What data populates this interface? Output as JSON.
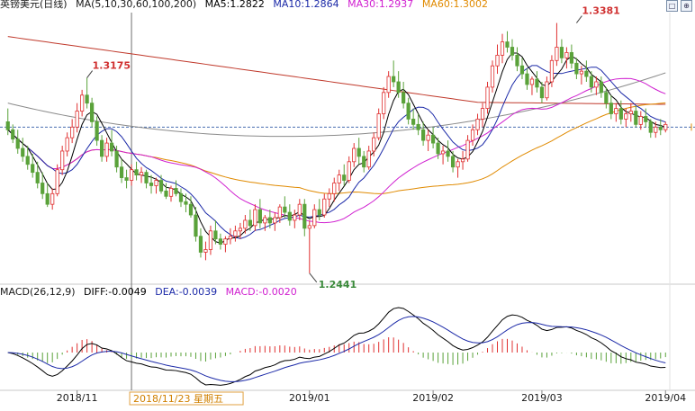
{
  "header": {
    "instrument": "英镑美元(日线)",
    "ma_label": "MA(5,10,30,60,100,200)",
    "ma_values": [
      {
        "label": "MA5:1.2822",
        "color": "#000000"
      },
      {
        "label": "MA10:1.2864",
        "color": "#1c2aa8"
      },
      {
        "label": "MA30:1.2937",
        "color": "#d020d0"
      },
      {
        "label": "MA60:1.3002",
        "color": "#e08a00"
      }
    ],
    "window_buttons": [
      "□",
      "⊕"
    ]
  },
  "macd_header": {
    "params": "MACD(26,12,9)",
    "diff": "DIFF:-0.0049",
    "dea": "DEA:-0.0039",
    "macd": "MACD:-0.0020",
    "diff_color": "#000000",
    "dea_color": "#1c2aa8",
    "macd_color": "#d020d0"
  },
  "crosshair_label": "2018/11/23 星期五",
  "colors": {
    "up": "#e03030",
    "down": "#5aa23a",
    "ma5": "#000000",
    "ma10": "#1c2aa8",
    "ma30": "#d020d0",
    "ma60": "#e08a00",
    "ma100": "#8a8a8a",
    "ma200": "#c0392b",
    "annotation": "#d03030",
    "annotation_low": "#3a8a3a",
    "date_label": "#d08000"
  },
  "chart_data": {
    "type": "candlestick",
    "y_range": [
      1.24,
      1.342
    ],
    "reference_price": 1.299,
    "x_axis_labels": [
      {
        "label": "2018/11",
        "index": 14
      },
      {
        "label": "2019/01",
        "index": 61
      },
      {
        "label": "2019/02",
        "index": 86
      },
      {
        "label": "2019/03",
        "index": 108
      },
      {
        "label": "2019/04",
        "index": 133
      }
    ],
    "annotations": [
      {
        "label": "1.3175",
        "index": 16,
        "price": 1.3175
      },
      {
        "label": "1.3381",
        "index": 115,
        "price": 1.3381
      },
      {
        "label": "1.2441",
        "index": 61,
        "price": 1.2441
      }
    ],
    "candles": [
      [
        1.301,
        1.306,
        1.296,
        1.298
      ],
      [
        1.298,
        1.3,
        1.293,
        1.2945
      ],
      [
        1.2945,
        1.298,
        1.289,
        1.291
      ],
      [
        1.291,
        1.295,
        1.286,
        1.288
      ],
      [
        1.288,
        1.292,
        1.283,
        1.285
      ],
      [
        1.285,
        1.289,
        1.28,
        1.282
      ],
      [
        1.282,
        1.286,
        1.276,
        1.278
      ],
      [
        1.278,
        1.282,
        1.272,
        1.274
      ],
      [
        1.274,
        1.278,
        1.269,
        1.27
      ],
      [
        1.27,
        1.276,
        1.268,
        1.274
      ],
      [
        1.274,
        1.285,
        1.273,
        1.283
      ],
      [
        1.283,
        1.292,
        1.281,
        1.29
      ],
      [
        1.29,
        1.297,
        1.288,
        1.295
      ],
      [
        1.295,
        1.302,
        1.293,
        1.299
      ],
      [
        1.299,
        1.308,
        1.297,
        1.305
      ],
      [
        1.305,
        1.313,
        1.303,
        1.311
      ],
      [
        1.311,
        1.3175,
        1.306,
        1.308
      ],
      [
        1.308,
        1.31,
        1.299,
        1.301
      ],
      [
        1.301,
        1.303,
        1.292,
        1.294
      ],
      [
        1.294,
        1.296,
        1.286,
        1.288
      ],
      [
        1.288,
        1.295,
        1.286,
        1.293
      ],
      [
        1.293,
        1.298,
        1.288,
        1.29
      ],
      [
        1.29,
        1.292,
        1.282,
        1.284
      ],
      [
        1.284,
        1.287,
        1.278,
        1.28
      ],
      [
        1.28,
        1.283,
        1.276,
        1.279
      ],
      [
        1.279,
        1.285,
        1.277,
        1.283
      ],
      [
        1.283,
        1.286,
        1.279,
        1.281
      ],
      [
        1.281,
        1.284,
        1.278,
        1.282
      ],
      [
        1.282,
        1.283,
        1.276,
        1.278
      ],
      [
        1.278,
        1.281,
        1.274,
        1.277
      ],
      [
        1.277,
        1.28,
        1.274,
        1.279
      ],
      [
        1.279,
        1.281,
        1.274,
        1.275
      ],
      [
        1.275,
        1.278,
        1.272,
        1.273
      ],
      [
        1.273,
        1.277,
        1.271,
        1.276
      ],
      [
        1.276,
        1.279,
        1.273,
        1.274
      ],
      [
        1.274,
        1.276,
        1.269,
        1.271
      ],
      [
        1.271,
        1.274,
        1.267,
        1.27
      ],
      [
        1.27,
        1.273,
        1.265,
        1.266
      ],
      [
        1.266,
        1.269,
        1.256,
        1.258
      ],
      [
        1.258,
        1.261,
        1.25,
        1.252
      ],
      [
        1.252,
        1.256,
        1.249,
        1.253
      ],
      [
        1.253,
        1.262,
        1.251,
        1.26
      ],
      [
        1.26,
        1.264,
        1.255,
        1.257
      ],
      [
        1.257,
        1.259,
        1.253,
        1.255
      ],
      [
        1.255,
        1.258,
        1.252,
        1.257
      ],
      [
        1.257,
        1.261,
        1.255,
        1.258
      ],
      [
        1.258,
        1.262,
        1.256,
        1.26
      ],
      [
        1.26,
        1.263,
        1.257,
        1.261
      ],
      [
        1.261,
        1.266,
        1.259,
        1.264
      ],
      [
        1.264,
        1.268,
        1.26,
        1.262
      ],
      [
        1.262,
        1.27,
        1.26,
        1.268
      ],
      [
        1.268,
        1.272,
        1.261,
        1.263
      ],
      [
        1.263,
        1.266,
        1.26,
        1.265
      ],
      [
        1.265,
        1.268,
        1.261,
        1.263
      ],
      [
        1.263,
        1.267,
        1.26,
        1.265
      ],
      [
        1.265,
        1.27,
        1.263,
        1.269
      ],
      [
        1.269,
        1.273,
        1.265,
        1.267
      ],
      [
        1.267,
        1.27,
        1.262,
        1.264
      ],
      [
        1.264,
        1.268,
        1.261,
        1.266
      ],
      [
        1.266,
        1.272,
        1.264,
        1.27
      ],
      [
        1.27,
        1.272,
        1.258,
        1.261
      ],
      [
        1.261,
        1.264,
        1.2441,
        1.262
      ],
      [
        1.262,
        1.27,
        1.261,
        1.268
      ],
      [
        1.268,
        1.272,
        1.264,
        1.266
      ],
      [
        1.266,
        1.274,
        1.265,
        1.272
      ],
      [
        1.272,
        1.276,
        1.269,
        1.274
      ],
      [
        1.274,
        1.28,
        1.271,
        1.278
      ],
      [
        1.278,
        1.283,
        1.275,
        1.281
      ],
      [
        1.281,
        1.285,
        1.277,
        1.279
      ],
      [
        1.279,
        1.288,
        1.278,
        1.286
      ],
      [
        1.286,
        1.293,
        1.284,
        1.291
      ],
      [
        1.291,
        1.295,
        1.285,
        1.288
      ],
      [
        1.288,
        1.29,
        1.282,
        1.284
      ],
      [
        1.284,
        1.292,
        1.283,
        1.29
      ],
      [
        1.29,
        1.297,
        1.288,
        1.295
      ],
      [
        1.295,
        1.306,
        1.294,
        1.304
      ],
      [
        1.304,
        1.314,
        1.302,
        1.312
      ],
      [
        1.312,
        1.32,
        1.31,
        1.318
      ],
      [
        1.318,
        1.324,
        1.314,
        1.316
      ],
      [
        1.316,
        1.32,
        1.31,
        1.312
      ],
      [
        1.312,
        1.316,
        1.306,
        1.308
      ],
      [
        1.308,
        1.31,
        1.3,
        1.302
      ],
      [
        1.302,
        1.306,
        1.298,
        1.3
      ],
      [
        1.3,
        1.304,
        1.296,
        1.298
      ],
      [
        1.298,
        1.301,
        1.292,
        1.294
      ],
      [
        1.294,
        1.298,
        1.29,
        1.296
      ],
      [
        1.296,
        1.299,
        1.291,
        1.293
      ],
      [
        1.293,
        1.295,
        1.287,
        1.289
      ],
      [
        1.289,
        1.292,
        1.285,
        1.29
      ],
      [
        1.29,
        1.294,
        1.286,
        1.288
      ],
      [
        1.288,
        1.29,
        1.282,
        1.284
      ],
      [
        1.284,
        1.287,
        1.28,
        1.286
      ],
      [
        1.286,
        1.29,
        1.283,
        1.287
      ],
      [
        1.287,
        1.296,
        1.286,
        1.294
      ],
      [
        1.294,
        1.3,
        1.292,
        1.298
      ],
      [
        1.298,
        1.304,
        1.296,
        1.302
      ],
      [
        1.302,
        1.308,
        1.299,
        1.306
      ],
      [
        1.306,
        1.316,
        1.304,
        1.314
      ],
      [
        1.314,
        1.324,
        1.312,
        1.322
      ],
      [
        1.322,
        1.33,
        1.319,
        1.326
      ],
      [
        1.326,
        1.334,
        1.323,
        1.331
      ],
      [
        1.331,
        1.335,
        1.327,
        1.329
      ],
      [
        1.329,
        1.332,
        1.324,
        1.326
      ],
      [
        1.326,
        1.329,
        1.32,
        1.322
      ],
      [
        1.322,
        1.325,
        1.317,
        1.319
      ],
      [
        1.319,
        1.321,
        1.313,
        1.315
      ],
      [
        1.315,
        1.318,
        1.311,
        1.317
      ],
      [
        1.317,
        1.32,
        1.312,
        1.314
      ],
      [
        1.314,
        1.316,
        1.308,
        1.31
      ],
      [
        1.31,
        1.318,
        1.309,
        1.316
      ],
      [
        1.316,
        1.326,
        1.314,
        1.324
      ],
      [
        1.324,
        1.3381,
        1.322,
        1.329
      ],
      [
        1.329,
        1.332,
        1.323,
        1.325
      ],
      [
        1.325,
        1.329,
        1.321,
        1.327
      ],
      [
        1.327,
        1.33,
        1.321,
        1.323
      ],
      [
        1.323,
        1.325,
        1.317,
        1.319
      ],
      [
        1.319,
        1.322,
        1.315,
        1.32
      ],
      [
        1.32,
        1.324,
        1.316,
        1.318
      ],
      [
        1.318,
        1.32,
        1.312,
        1.314
      ],
      [
        1.314,
        1.318,
        1.311,
        1.316
      ],
      [
        1.316,
        1.318,
        1.31,
        1.312
      ],
      [
        1.312,
        1.314,
        1.306,
        1.308
      ],
      [
        1.308,
        1.311,
        1.302,
        1.304
      ],
      [
        1.304,
        1.308,
        1.301,
        1.306
      ],
      [
        1.306,
        1.309,
        1.3,
        1.302
      ],
      [
        1.302,
        1.306,
        1.299,
        1.304
      ],
      [
        1.304,
        1.308,
        1.301,
        1.305
      ],
      [
        1.305,
        1.307,
        1.299,
        1.3
      ],
      [
        1.3,
        1.305,
        1.298,
        1.303
      ],
      [
        1.303,
        1.306,
        1.299,
        1.301
      ],
      [
        1.301,
        1.302,
        1.295,
        1.297
      ],
      [
        1.297,
        1.301,
        1.295,
        1.299
      ],
      [
        1.299,
        1.302,
        1.296,
        1.298
      ],
      [
        1.298,
        1.301,
        1.297,
        1.3
      ]
    ]
  }
}
